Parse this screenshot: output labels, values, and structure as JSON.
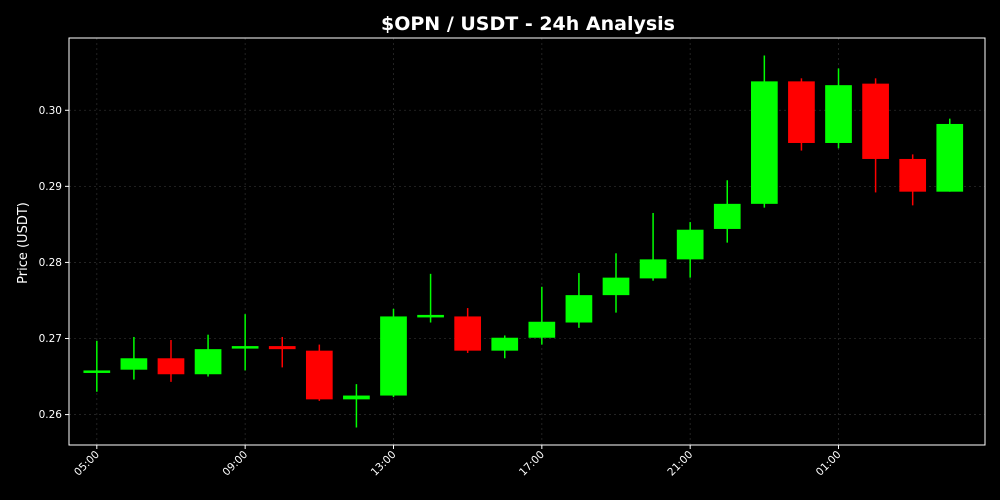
{
  "chart_data": {
    "type": "candlestick",
    "title": "$OPN / USDT - 24h Analysis",
    "xlabel": "",
    "ylabel": "Price (USDT)",
    "ylim": [
      0.256,
      0.3095
    ],
    "yticks": [
      "0.26",
      "0.27",
      "0.28",
      "0.29",
      "0.30"
    ],
    "ytick_values": [
      0.26,
      0.27,
      0.28,
      0.29,
      0.3
    ],
    "xlim": [
      4.25,
      28.95
    ],
    "xticks": [
      "05:00",
      "09:00",
      "13:00",
      "17:00",
      "21:00",
      "01:00"
    ],
    "xtick_values": [
      5,
      9,
      13,
      17,
      21,
      25
    ],
    "grid": true,
    "colors": {
      "up": "#00ff00",
      "down": "#ff0000",
      "axes": "#ffffff",
      "grid": "#2a2a2a",
      "background": "#000000"
    },
    "candles": [
      {
        "time": 5,
        "open": 0.2657,
        "high": 0.2697,
        "low": 0.263,
        "close": 0.2658
      },
      {
        "time": 6,
        "open": 0.2659,
        "high": 0.2702,
        "low": 0.2646,
        "close": 0.2674
      },
      {
        "time": 7,
        "open": 0.2674,
        "high": 0.2698,
        "low": 0.2643,
        "close": 0.2653
      },
      {
        "time": 8,
        "open": 0.2653,
        "high": 0.2705,
        "low": 0.265,
        "close": 0.2686
      },
      {
        "time": 9,
        "open": 0.2688,
        "high": 0.2732,
        "low": 0.2658,
        "close": 0.269
      },
      {
        "time": 10,
        "open": 0.269,
        "high": 0.2702,
        "low": 0.2662,
        "close": 0.2686
      },
      {
        "time": 11,
        "open": 0.2684,
        "high": 0.2692,
        "low": 0.2618,
        "close": 0.262
      },
      {
        "time": 12,
        "open": 0.262,
        "high": 0.264,
        "low": 0.2583,
        "close": 0.2625
      },
      {
        "time": 13,
        "open": 0.2625,
        "high": 0.2739,
        "low": 0.2623,
        "close": 0.2729
      },
      {
        "time": 14,
        "open": 0.2729,
        "high": 0.2785,
        "low": 0.2721,
        "close": 0.2731
      },
      {
        "time": 15,
        "open": 0.2729,
        "high": 0.274,
        "low": 0.2681,
        "close": 0.2684
      },
      {
        "time": 16,
        "open": 0.2684,
        "high": 0.2704,
        "low": 0.2674,
        "close": 0.2701
      },
      {
        "time": 17,
        "open": 0.2701,
        "high": 0.2768,
        "low": 0.2692,
        "close": 0.2722
      },
      {
        "time": 18,
        "open": 0.2721,
        "high": 0.2786,
        "low": 0.2714,
        "close": 0.2757
      },
      {
        "time": 19,
        "open": 0.2757,
        "high": 0.2812,
        "low": 0.2734,
        "close": 0.278
      },
      {
        "time": 20,
        "open": 0.2779,
        "high": 0.2865,
        "low": 0.2776,
        "close": 0.2804
      },
      {
        "time": 21,
        "open": 0.2804,
        "high": 0.2853,
        "low": 0.278,
        "close": 0.2843
      },
      {
        "time": 22,
        "open": 0.2844,
        "high": 0.2908,
        "low": 0.2826,
        "close": 0.2877
      },
      {
        "time": 23,
        "open": 0.2877,
        "high": 0.3072,
        "low": 0.2872,
        "close": 0.3038
      },
      {
        "time": 24,
        "open": 0.3038,
        "high": 0.3042,
        "low": 0.2947,
        "close": 0.2957
      },
      {
        "time": 25,
        "open": 0.2957,
        "high": 0.3055,
        "low": 0.295,
        "close": 0.3033
      },
      {
        "time": 26,
        "open": 0.3035,
        "high": 0.3042,
        "low": 0.2892,
        "close": 0.2936
      },
      {
        "time": 27,
        "open": 0.2936,
        "high": 0.2942,
        "low": 0.2875,
        "close": 0.2893
      },
      {
        "time": 28,
        "open": 0.2893,
        "high": 0.2989,
        "low": 0.2893,
        "close": 0.2982
      }
    ]
  }
}
